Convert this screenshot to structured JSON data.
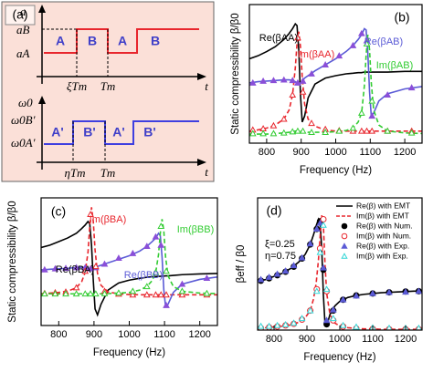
{
  "diagram": {
    "label": "(a)",
    "top": {
      "y_max": "a",
      "y_high": "aB",
      "y_low": "aA",
      "blocks": [
        "A",
        "B",
        "A",
        "B"
      ],
      "t1": "ξTm",
      "t2": "Tm",
      "t": "t"
    },
    "bottom": {
      "y_max": "ω0",
      "y_high": "ω0B'",
      "y_low": "ω0A'",
      "blocks": [
        "A'",
        "B'",
        "A'",
        "B'"
      ],
      "t1": "ηTm",
      "t2": "Tm",
      "t": "t"
    }
  },
  "chart_data": [
    {
      "type": "line",
      "panel_label": "(b)",
      "xlabel": "Frequency (Hz)",
      "ylabel": "Static compressibility β/β0",
      "xlim": [
        750,
        1250
      ],
      "xticks": [
        800,
        900,
        1000,
        1100,
        1200
      ],
      "ylim": [
        0,
        2.3
      ],
      "x": [
        750,
        775,
        800,
        825,
        850,
        865,
        875,
        883,
        888,
        893,
        898,
        903,
        910,
        920,
        940,
        970,
        1000,
        1030,
        1050,
        1065,
        1075,
        1083,
        1088,
        1093,
        1098,
        1103,
        1110,
        1125,
        1150,
        1200,
        1250
      ],
      "series": [
        {
          "name": "Re(βAA)",
          "color": "#000000",
          "style": "solid",
          "values": [
            1.4,
            1.45,
            1.52,
            1.6,
            1.72,
            1.82,
            1.9,
            1.98,
            1.95,
            1.55,
            0.8,
            0.35,
            0.45,
            0.75,
            0.98,
            1.08,
            1.12,
            1.15,
            1.16,
            1.17,
            1.17,
            1.18,
            1.18,
            1.18,
            1.18,
            1.18,
            1.18,
            1.18,
            1.18,
            1.19,
            1.19
          ]
        },
        {
          "name": "Im(βAA)",
          "color": "#e8262d",
          "style": "dashed",
          "values": [
            0.2,
            0.22,
            0.25,
            0.3,
            0.4,
            0.55,
            0.8,
            1.25,
            1.65,
            1.85,
            1.6,
            1.1,
            0.65,
            0.4,
            0.28,
            0.22,
            0.2,
            0.2,
            0.2,
            0.2,
            0.2,
            0.2,
            0.2,
            0.2,
            0.2,
            0.2,
            0.2,
            0.2,
            0.2,
            0.2,
            0.2
          ]
        },
        {
          "name": "Re(βAB)",
          "color": "#5b5bd6",
          "style": "solid",
          "values": [
            1.0,
            1.02,
            1.03,
            1.04,
            1.05,
            1.05,
            1.04,
            1.02,
            1.0,
            0.98,
            1.0,
            1.03,
            1.08,
            1.12,
            1.2,
            1.3,
            1.4,
            1.52,
            1.62,
            1.72,
            1.8,
            1.9,
            1.88,
            1.5,
            0.85,
            0.45,
            0.5,
            0.7,
            0.82,
            0.9,
            0.94
          ]
        },
        {
          "name": "Im(βAB)",
          "color": "#33cc33",
          "style": "dashed",
          "values": [
            0.15,
            0.15,
            0.15,
            0.16,
            0.17,
            0.18,
            0.19,
            0.2,
            0.2,
            0.2,
            0.2,
            0.2,
            0.19,
            0.18,
            0.18,
            0.18,
            0.19,
            0.21,
            0.25,
            0.35,
            0.5,
            0.95,
            1.45,
            1.8,
            1.55,
            1.0,
            0.55,
            0.3,
            0.2,
            0.17,
            0.16
          ]
        },
        {
          "color": "#8a4fd8",
          "marker": "triangle",
          "filled": true,
          "x": [
            760,
            790,
            820,
            850,
            875,
            890,
            905,
            930,
            970,
            1010,
            1050,
            1075,
            1090,
            1105,
            1150,
            1220
          ],
          "values": [
            1.0,
            1.03,
            1.04,
            1.05,
            1.04,
            1.0,
            1.03,
            1.15,
            1.3,
            1.45,
            1.62,
            1.82,
            1.7,
            0.45,
            0.8,
            0.92
          ]
        },
        {
          "color": "#e8262d",
          "marker": "triangle",
          "filled": false,
          "x": [
            760,
            790,
            820,
            850,
            875,
            890,
            905,
            930,
            970,
            1010,
            1050,
            1075,
            1090,
            1105,
            1150,
            1220
          ],
          "values": [
            0.22,
            0.24,
            0.29,
            0.4,
            0.8,
            1.75,
            0.85,
            0.33,
            0.23,
            0.21,
            0.2,
            0.2,
            0.2,
            0.2,
            0.2,
            0.2
          ]
        },
        {
          "color": "#33cc33",
          "marker": "triangle",
          "filled": false,
          "x": [
            760,
            790,
            820,
            850,
            875,
            890,
            905,
            930,
            970,
            1010,
            1050,
            1075,
            1090,
            1105,
            1150,
            1220
          ],
          "values": [
            0.16,
            0.16,
            0.16,
            0.17,
            0.19,
            0.2,
            0.2,
            0.18,
            0.18,
            0.2,
            0.25,
            0.5,
            1.65,
            0.7,
            0.2,
            0.17
          ]
        }
      ]
    },
    {
      "type": "line",
      "panel_label": "(c)",
      "xlabel": "Frequency (Hz)",
      "ylabel": "Static compressibility β/β0",
      "xlim": [
        750,
        1250
      ],
      "xticks": [
        800,
        900,
        1000,
        1100,
        1200
      ],
      "ylim": [
        -1.3,
        4.1
      ],
      "x": [
        750,
        775,
        800,
        825,
        850,
        865,
        875,
        883,
        888,
        893,
        898,
        903,
        910,
        920,
        940,
        970,
        1000,
        1030,
        1050,
        1065,
        1075,
        1083,
        1088,
        1093,
        1098,
        1103,
        1110,
        1125,
        1150,
        1200,
        1250
      ],
      "series": [
        {
          "name": "Re(βBA)",
          "color": "#000000",
          "style": "solid",
          "values": [
            2.0,
            2.1,
            2.25,
            2.4,
            2.6,
            2.8,
            2.95,
            3.1,
            3.0,
            2.1,
            0.6,
            -0.6,
            -0.85,
            -0.4,
            0.2,
            0.5,
            0.62,
            0.7,
            0.74,
            0.76,
            0.77,
            0.78,
            0.78,
            0.79,
            0.79,
            0.8,
            0.8,
            0.82,
            0.85,
            0.88,
            0.9
          ]
        },
        {
          "name": "Im(βBA)",
          "color": "#e8262d",
          "style": "dashed",
          "values": [
            0.05,
            0.07,
            0.1,
            0.15,
            0.3,
            0.55,
            0.95,
            1.8,
            2.9,
            3.7,
            3.1,
            1.9,
            0.9,
            0.4,
            0.12,
            0.04,
            0.01,
            0,
            0,
            0,
            0,
            0,
            0,
            0,
            0,
            0,
            0,
            0,
            0,
            0,
            0
          ]
        },
        {
          "name": "Re(βBB)",
          "color": "#5b5bd6",
          "style": "solid",
          "values": [
            1.05,
            1.08,
            1.1,
            1.12,
            1.15,
            1.16,
            1.15,
            1.12,
            1.1,
            1.1,
            1.12,
            1.15,
            1.2,
            1.25,
            1.35,
            1.5,
            1.65,
            1.85,
            2.05,
            2.25,
            2.4,
            2.6,
            2.5,
            1.6,
            0.2,
            -0.5,
            -0.4,
            0.1,
            0.45,
            0.65,
            0.75
          ]
        },
        {
          "name": "Im(βBB)",
          "color": "#33cc33",
          "style": "dashed",
          "values": [
            0.04,
            0.04,
            0.04,
            0.04,
            0.04,
            0.04,
            0.04,
            0.04,
            0.04,
            0.04,
            0.04,
            0.04,
            0.04,
            0.04,
            0.05,
            0.07,
            0.1,
            0.2,
            0.35,
            0.6,
            0.95,
            1.7,
            2.6,
            3.2,
            2.7,
            1.6,
            0.8,
            0.35,
            0.15,
            0.07,
            0.05
          ]
        },
        {
          "color": "#8a4fd8",
          "marker": "triangle",
          "filled": true,
          "x": [
            760,
            790,
            820,
            850,
            875,
            890,
            905,
            930,
            970,
            1010,
            1050,
            1075,
            1090,
            1105,
            1150,
            1220
          ],
          "values": [
            1.06,
            1.1,
            1.12,
            1.15,
            1.15,
            1.1,
            1.15,
            1.3,
            1.55,
            1.75,
            2.05,
            2.45,
            2.1,
            -0.45,
            0.45,
            0.7
          ]
        },
        {
          "color": "#e8262d",
          "marker": "triangle",
          "filled": false,
          "x": [
            760,
            790,
            820,
            850,
            875,
            890,
            905,
            930,
            970,
            1010,
            1050,
            1075,
            1090,
            1105,
            1150,
            1220
          ],
          "values": [
            0.06,
            0.09,
            0.12,
            0.3,
            1.0,
            3.4,
            1.2,
            0.15,
            0.03,
            0,
            0,
            0,
            0,
            0,
            0,
            0
          ]
        },
        {
          "color": "#33cc33",
          "marker": "triangle",
          "filled": false,
          "x": [
            760,
            790,
            820,
            850,
            875,
            890,
            905,
            930,
            970,
            1010,
            1050,
            1075,
            1090,
            1105,
            1150,
            1220
          ],
          "values": [
            0.04,
            0.04,
            0.04,
            0.04,
            0.04,
            0.04,
            0.04,
            0.05,
            0.08,
            0.15,
            0.35,
            0.95,
            2.9,
            1.0,
            0.15,
            0.06
          ]
        }
      ]
    },
    {
      "type": "line",
      "panel_label": "(d)",
      "xlabel": "Frequency (Hz)",
      "ylabel": "βeff / β0",
      "xlim": [
        750,
        1250
      ],
      "xticks": [
        800,
        900,
        1000,
        1100,
        1200
      ],
      "ylim": [
        0,
        3.4
      ],
      "legend": "upper right",
      "annotations": [
        "ξ=0.25",
        "η=0.75"
      ],
      "x": [
        750,
        775,
        800,
        825,
        850,
        875,
        895,
        910,
        920,
        928,
        935,
        940,
        945,
        950,
        955,
        960,
        970,
        985,
        1000,
        1025,
        1050,
        1075,
        1100,
        1125,
        1150,
        1175,
        1200,
        1225,
        1250
      ],
      "series": [
        {
          "name": "Re(β) with EMT",
          "color": "#000000",
          "style": "solid",
          "values": [
            1.25,
            1.3,
            1.38,
            1.46,
            1.58,
            1.75,
            1.95,
            2.2,
            2.45,
            2.68,
            2.85,
            2.75,
            2.1,
            0.9,
            0.15,
            0.1,
            0.4,
            0.62,
            0.74,
            0.84,
            0.89,
            0.92,
            0.94,
            0.96,
            0.97,
            0.98,
            0.99,
            1.0,
            1.0
          ]
        },
        {
          "name": "Im(β) with EMT",
          "color": "#e8262d",
          "style": "dashed",
          "values": [
            0.05,
            0.06,
            0.08,
            0.1,
            0.13,
            0.2,
            0.32,
            0.5,
            0.8,
            1.2,
            1.8,
            2.4,
            2.95,
            2.7,
            1.7,
            0.95,
            0.4,
            0.18,
            0.1,
            0.06,
            0.04,
            0.03,
            0.03,
            0.02,
            0.02,
            0.02,
            0.02,
            0.02,
            0.02
          ]
        },
        {
          "name": "Re(β) with Num.",
          "color": "#000000",
          "marker": "circle",
          "filled": true,
          "x": [
            760,
            785,
            810,
            835,
            860,
            885,
            910,
            930,
            940,
            950,
            960,
            980,
            1010,
            1050,
            1100,
            1150,
            1200,
            1240
          ],
          "values": [
            1.27,
            1.33,
            1.41,
            1.5,
            1.63,
            1.84,
            2.2,
            2.6,
            2.8,
            1.55,
            0.15,
            0.5,
            0.78,
            0.89,
            0.94,
            0.97,
            0.99,
            1.0
          ]
        },
        {
          "name": "Im(β) with Num.",
          "color": "#e8262d",
          "marker": "circle",
          "filled": false,
          "x": [
            760,
            785,
            810,
            835,
            860,
            885,
            910,
            930,
            940,
            950,
            960,
            980,
            1010,
            1050,
            1100,
            1150,
            1200,
            1240
          ],
          "values": [
            0.05,
            0.07,
            0.09,
            0.12,
            0.16,
            0.27,
            0.5,
            1.05,
            2.1,
            2.85,
            1.0,
            0.25,
            0.09,
            0.04,
            0.03,
            0.02,
            0.02,
            0.02
          ]
        },
        {
          "name": "Re(β) with Exp.",
          "color": "#5b5bd6",
          "marker": "triangle",
          "filled": true,
          "x": [
            760,
            785,
            810,
            835,
            860,
            885,
            910,
            930,
            940,
            950,
            960,
            980,
            1010,
            1050,
            1100,
            1150,
            1200,
            1240
          ],
          "values": [
            1.3,
            1.36,
            1.44,
            1.52,
            1.66,
            1.86,
            2.22,
            2.6,
            2.75,
            1.6,
            0.25,
            0.52,
            0.78,
            0.88,
            0.94,
            0.97,
            0.98,
            1.0
          ]
        },
        {
          "name": "Im(β) with Exp.",
          "color": "#33d6d6",
          "marker": "triangle",
          "filled": false,
          "x": [
            760,
            785,
            810,
            835,
            860,
            885,
            910,
            930,
            940,
            950,
            960,
            980,
            1010,
            1050,
            1100,
            1150,
            1200,
            1240
          ],
          "values": [
            0.1,
            0.1,
            0.12,
            0.14,
            0.18,
            0.3,
            0.5,
            1.0,
            2.0,
            2.7,
            1.05,
            0.3,
            0.12,
            0.08,
            0.06,
            0.05,
            0.05,
            0.05
          ]
        }
      ]
    }
  ]
}
